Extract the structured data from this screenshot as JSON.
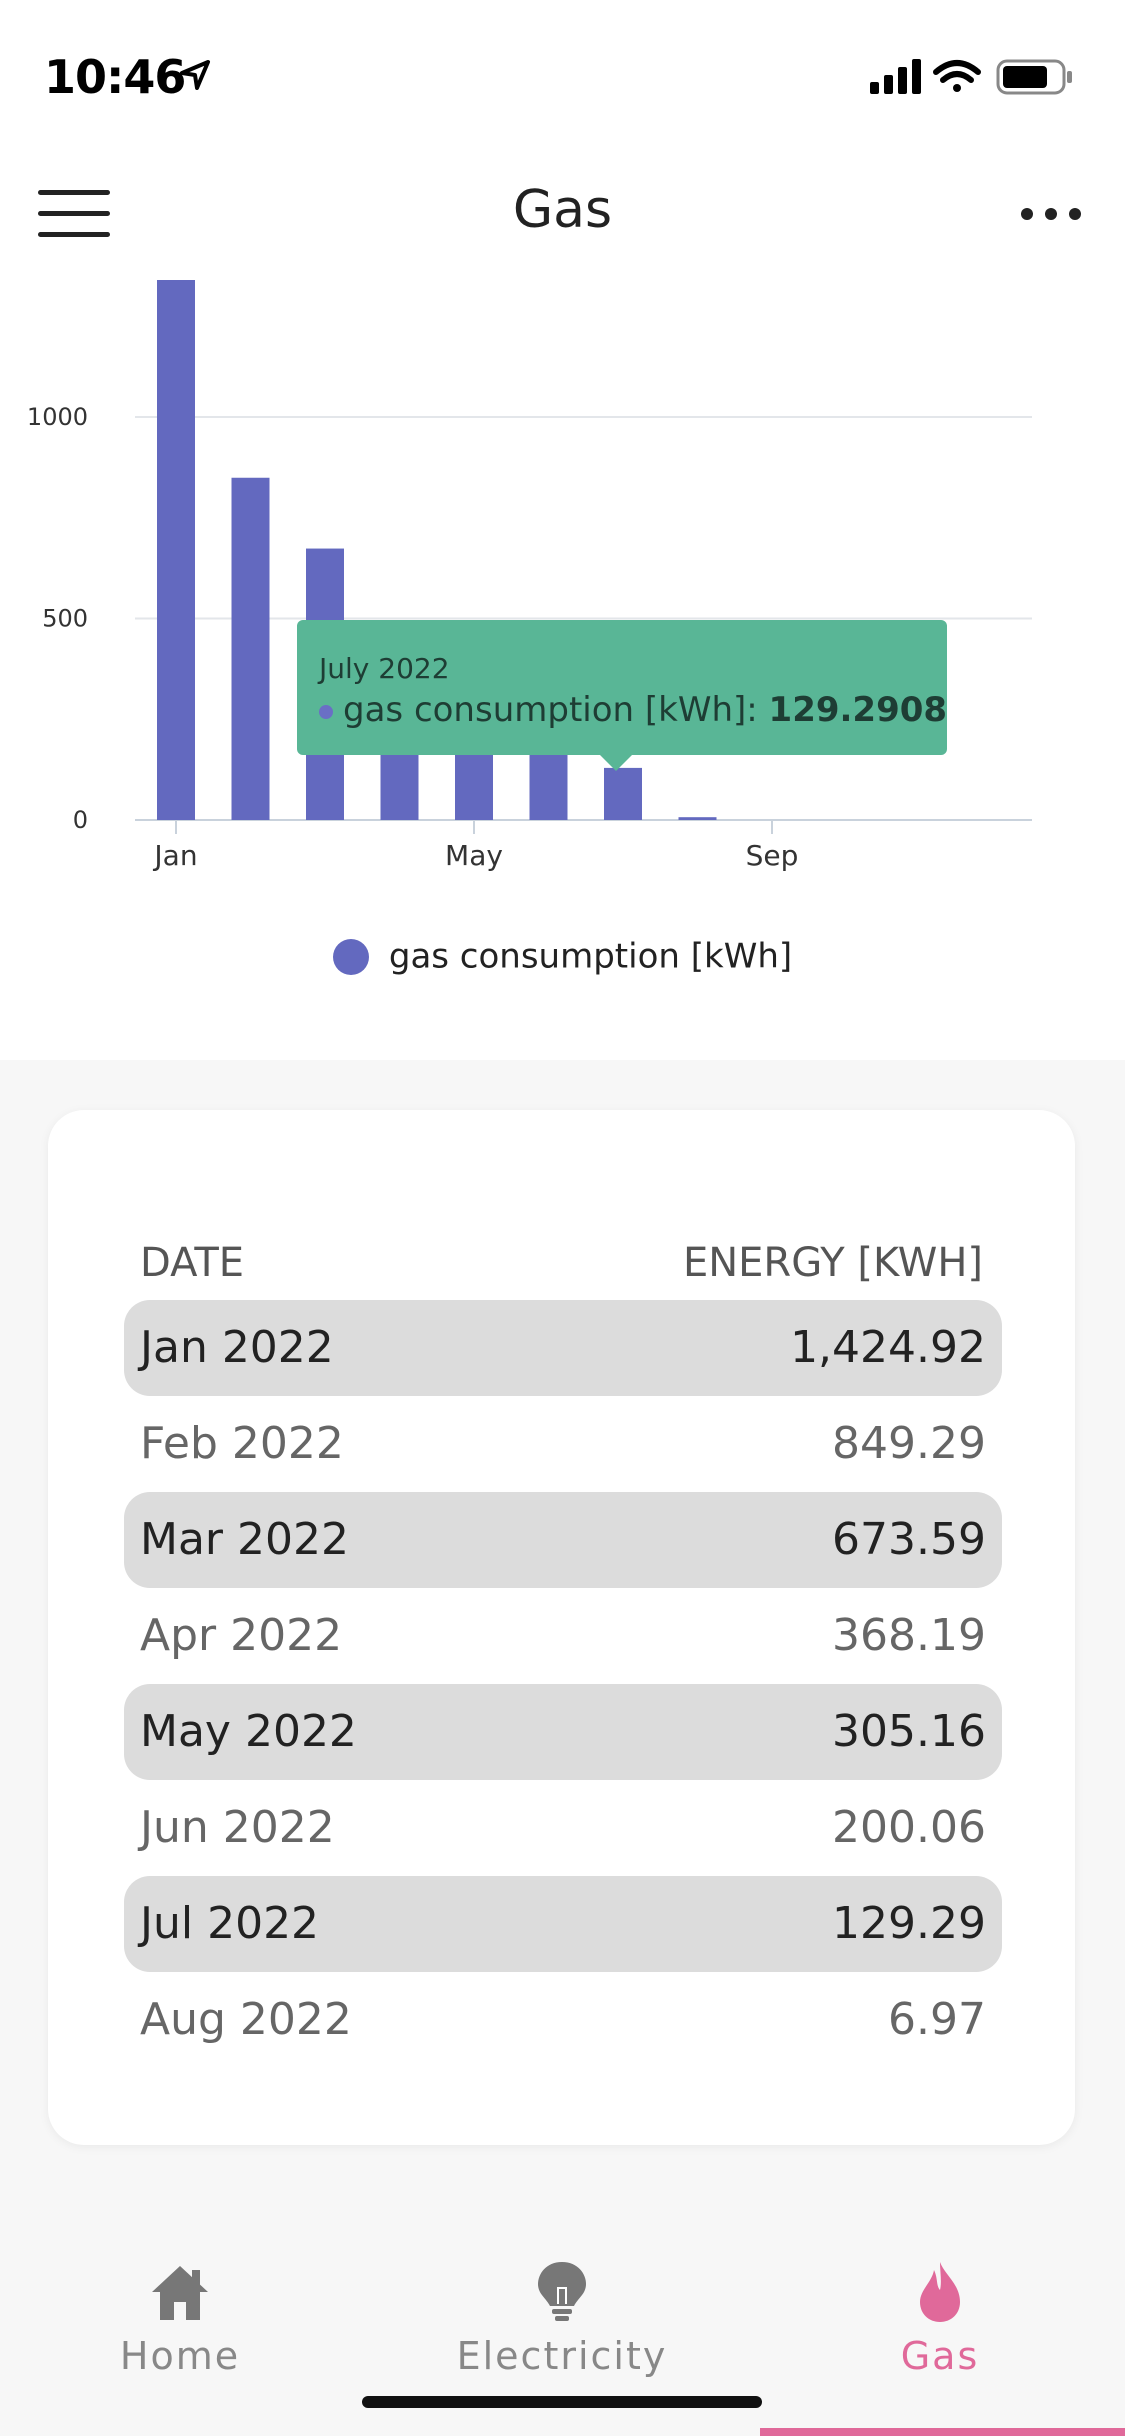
{
  "status_bar": {
    "time": "10:46"
  },
  "header": {
    "title": "Gas"
  },
  "chart_data": {
    "type": "bar",
    "x": [
      "Jan 2022",
      "Feb 2022",
      "Mar 2022",
      "Apr 2022",
      "May 2022",
      "Jun 2022",
      "Jul 2022",
      "Aug 2022"
    ],
    "series": [
      {
        "name": "gas consumption [kWh]",
        "values": [
          1424.92,
          849.29,
          673.59,
          368.19,
          305.16,
          200.06,
          129.29,
          6.97
        ]
      }
    ],
    "yticks": [
      "0",
      "500",
      "1000"
    ],
    "xticks": [
      "Jan",
      "May",
      "Sep"
    ],
    "ylim": [
      0,
      1340
    ],
    "grid": true,
    "legend": "bottom",
    "color": "#6369bf"
  },
  "tooltip": {
    "title": "July 2022",
    "series_label": "gas consumption [kWh]:",
    "value": "129.2908",
    "color": "#59b696"
  },
  "legend": {
    "label": "gas consumption [kWh]"
  },
  "table": {
    "headers": {
      "date": "DATE",
      "energy": "ENERGY [KWH]"
    },
    "rows": [
      {
        "date": "Jan 2022",
        "energy": "1,424.92"
      },
      {
        "date": "Feb 2022",
        "energy": "849.29"
      },
      {
        "date": "Mar 2022",
        "energy": "673.59"
      },
      {
        "date": "Apr 2022",
        "energy": "368.19"
      },
      {
        "date": "May 2022",
        "energy": "305.16"
      },
      {
        "date": "Jun 2022",
        "energy": "200.06"
      },
      {
        "date": "Jul 2022",
        "energy": "129.29"
      },
      {
        "date": "Aug 2022",
        "energy": "6.97"
      }
    ]
  },
  "tabs": [
    {
      "label": "Home",
      "icon": "home-icon",
      "active": false
    },
    {
      "label": "Electricity",
      "icon": "lightbulb-icon",
      "active": false
    },
    {
      "label": "Gas",
      "icon": "flame-icon",
      "active": true
    }
  ],
  "colors": {
    "accent": "#e0699a",
    "bar": "#6369bf",
    "tooltip": "#59b696"
  }
}
